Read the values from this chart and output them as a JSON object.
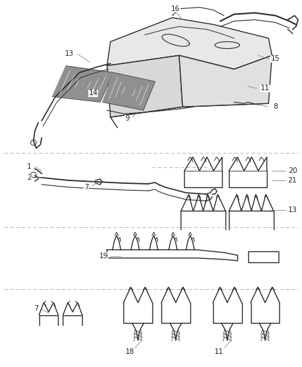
{
  "bg_color": "#ffffff",
  "line_color": "#2a2a2a",
  "label_color": "#222222",
  "leader_color": "#888888",
  "fill_color": "#c8c8c8",
  "figsize": [
    4.39,
    5.33
  ],
  "dpi": 100,
  "font_size": 7.5
}
